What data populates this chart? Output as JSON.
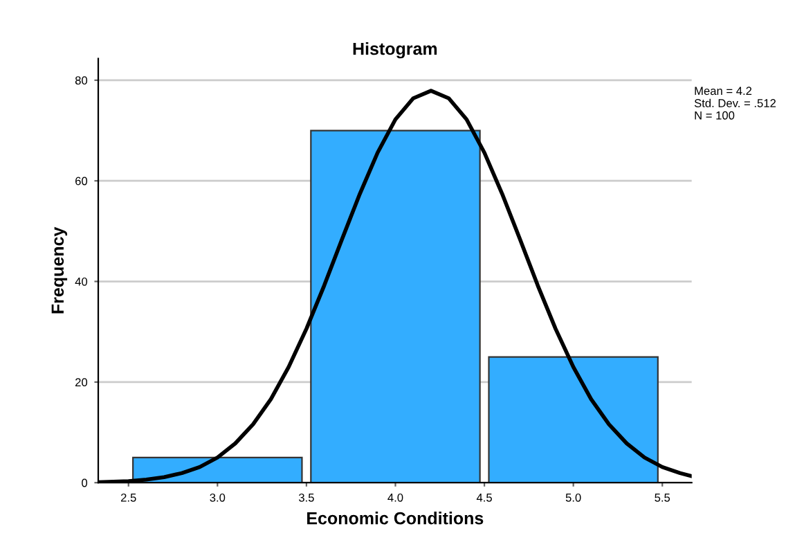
{
  "chart_data": {
    "type": "histogram",
    "title": "Histogram",
    "xlabel": "Economic Conditions",
    "ylabel": "Frequency",
    "bins": [
      2.5,
      3.5,
      4.5,
      5.5
    ],
    "values": [
      5,
      70,
      25
    ],
    "color": "#33adff",
    "series": [
      {
        "type": "line",
        "color": "#000000",
        "x": [
          2.33,
          2.5,
          2.6,
          2.7,
          2.8,
          2.9,
          3.0,
          3.1,
          3.2,
          3.3,
          3.4,
          3.5,
          3.6,
          3.7,
          3.8,
          3.9,
          4.0,
          4.1,
          4.2,
          4.3,
          4.4,
          4.5,
          4.6,
          4.7,
          4.8,
          4.9,
          5.0,
          5.1,
          5.2,
          5.3,
          5.4,
          5.5,
          5.6,
          5.665
        ],
        "values": [
          0.1,
          0.3,
          0.6,
          1.1,
          1.9,
          3.1,
          5.0,
          7.8,
          11.6,
          16.6,
          23.0,
          30.6,
          39.2,
          48.4,
          57.4,
          65.6,
          72.2,
          76.4,
          77.9,
          76.4,
          72.2,
          65.6,
          57.4,
          48.4,
          39.2,
          30.6,
          23.0,
          16.6,
          11.6,
          7.8,
          5.0,
          3.1,
          1.9,
          1.3
        ]
      }
    ],
    "xlim": [
      2.33,
      5.665
    ],
    "ylim": [
      0,
      84.3
    ],
    "xticks": [
      2.5,
      {
        "value": 3,
        "label": "3.0"
      },
      3.5,
      {
        "value": 4,
        "label": "4.0"
      },
      4.5,
      {
        "value": 5,
        "label": "5.0"
      },
      5.5
    ],
    "yticks": [
      0,
      20,
      40,
      60,
      80
    ],
    "grid": "y",
    "annotations": [
      "Mean = 4.2",
      "Std. Dev. = .512",
      "N = 100"
    ]
  }
}
